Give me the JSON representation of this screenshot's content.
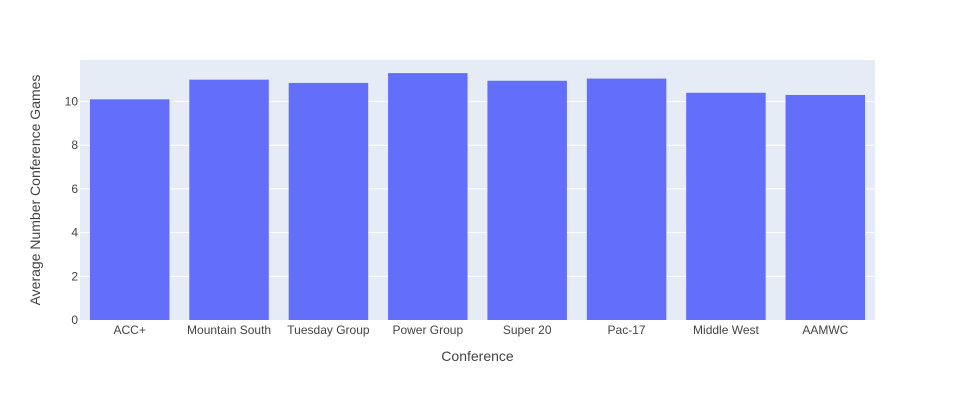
{
  "chart_data": {
    "type": "bar",
    "title": "",
    "xlabel": "Conference",
    "ylabel": "Average Number Conference Games",
    "categories": [
      "ACC+",
      "Mountain South",
      "Tuesday Group",
      "Power Group",
      "Super 20",
      "Pac-17",
      "Middle West",
      "AAMWC"
    ],
    "values": [
      10.1,
      11.0,
      10.85,
      11.3,
      10.95,
      11.05,
      10.4,
      10.3
    ],
    "ylim": [
      0,
      11.9
    ],
    "yticks": [
      0,
      2,
      4,
      6,
      8,
      10
    ],
    "grid": true,
    "colors": {
      "bar": "#636efa",
      "plot_background": "#e5ecf6",
      "grid": "#ffffff",
      "text": "#444444",
      "axis_title": "#444444"
    }
  }
}
